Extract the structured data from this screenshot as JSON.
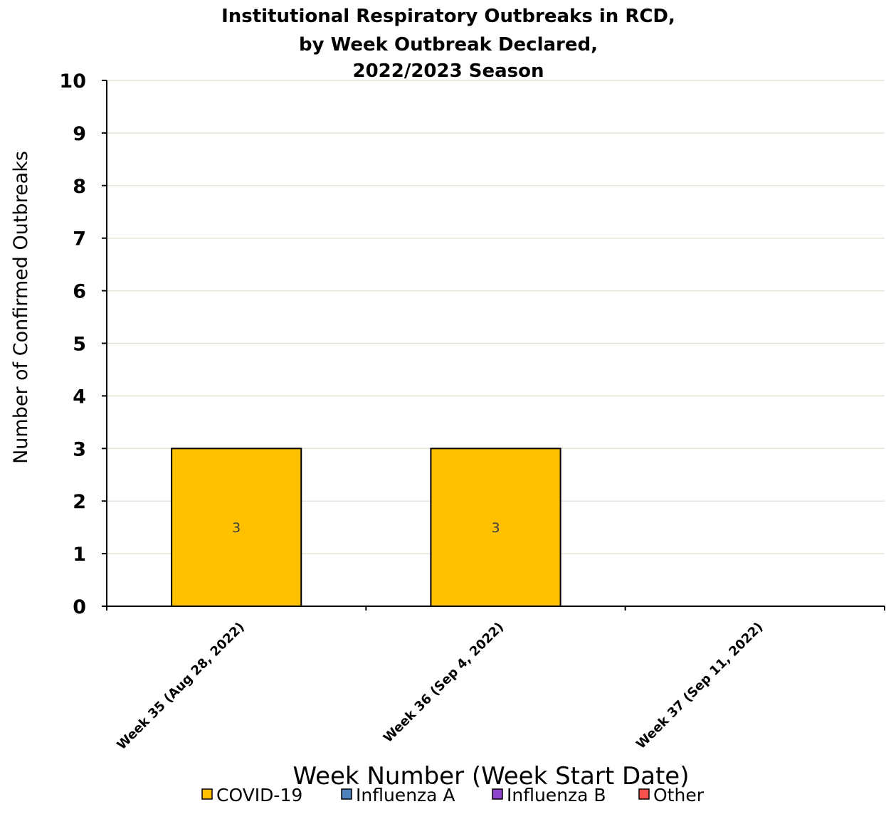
{
  "chart_data": {
    "type": "bar",
    "stacked": true,
    "title_lines": [
      "Institutional Respiratory Outbreaks in RCD,",
      "by Week Outbreak Declared,",
      "2022/2023 Season"
    ],
    "xlabel": "Week Number (Week Start Date)",
    "ylabel": "Number of Confirmed Outbreaks",
    "ylim": [
      0,
      10
    ],
    "yticks": [
      "0",
      "1",
      "2",
      "3",
      "4",
      "5",
      "6",
      "7",
      "8",
      "9",
      "10"
    ],
    "grid": true,
    "categories": [
      "Week 35 (Aug 28, 2022)",
      "Week 36 (Sep 4, 2022)",
      "Week 37 (Sep 11, 2022)"
    ],
    "series": [
      {
        "name": "COVID-19",
        "values": [
          3,
          3,
          0
        ],
        "color": "#FFC000",
        "data_labels": [
          "3",
          "3",
          ""
        ]
      },
      {
        "name": "Influenza A",
        "values": [
          0,
          0,
          0
        ],
        "color": "#4F81BD",
        "data_labels": [
          "",
          "",
          ""
        ]
      },
      {
        "name": "Influenza B",
        "values": [
          0,
          0,
          0
        ],
        "color": "#8E44CC",
        "data_labels": [
          "",
          "",
          ""
        ]
      },
      {
        "name": "Other",
        "values": [
          0,
          0,
          0
        ],
        "color": "#FF5050",
        "data_labels": [
          "",
          "",
          ""
        ]
      }
    ],
    "legend_position": "bottom"
  }
}
